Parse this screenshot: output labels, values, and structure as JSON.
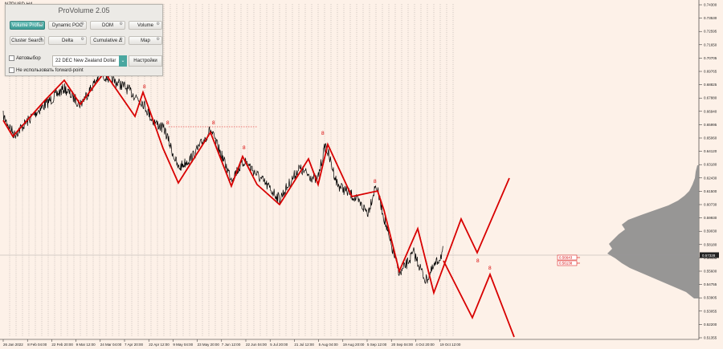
{
  "symbol": "NZDUSD,H4",
  "panel": {
    "title": "ProVolume 2.05",
    "buttons": [
      {
        "label": "Volume Profile",
        "active": true
      },
      {
        "label": "Dynamic POC",
        "active": false
      },
      {
        "label": "DOM",
        "active": false
      },
      {
        "label": "Volume",
        "active": false
      },
      {
        "label": "Cluster Search",
        "active": false
      },
      {
        "label": "Delta",
        "active": false
      },
      {
        "label": "Cumulative Δ",
        "active": false
      },
      {
        "label": "Map",
        "active": false
      }
    ],
    "autoselect_label": "Автовыбор",
    "instrument_value": "22 DEC New Zealand Dollar",
    "settings_label": "Настройки",
    "forward_point_label": "Не использовать forward-point"
  },
  "colors": {
    "background": "#fdf1e8",
    "price": "#000000",
    "projection": "#d80000",
    "profile": "#8c8c8c",
    "accent": "#3d9c95"
  },
  "price_axis": [
    "0.74300",
    "0.73530",
    "0.72595",
    "0.71650",
    "0.70705",
    "0.69765",
    "0.68825",
    "0.67880",
    "0.66940",
    "0.65995",
    "0.65060",
    "0.64120",
    "0.63180",
    "0.62430",
    "0.61500",
    "0.60730",
    "0.59930",
    "0.59030",
    "0.58180",
    "0.56455",
    "0.55600",
    "0.54755",
    "0.53905",
    "0.53055",
    "0.52200",
    "0.51355"
  ],
  "current_price": "0.57328",
  "level_labels": [
    "0.56643",
    "0.56138"
  ],
  "time_axis": [
    "26 Jan 2022",
    "8 Feb 04:00",
    "22 Feb 20:00",
    "9 Mar 12:00",
    "24 Mar 04:00",
    "7 Apr 20:00",
    "22 Apr 12:00",
    "9 May 04:00",
    "23 May 20:00",
    "7 Jun 12:00",
    "22 Jun 04:00",
    "5 Jul 20:00",
    "21 Jul 12:00",
    "5 Aug 04:00",
    "19 Aug 20:00",
    "5 Sep 12:00",
    "20 Sep 04:00",
    "4 Oct 20:00",
    "19 Oct 12:00"
  ],
  "wave_labels": [
    "8",
    "8",
    "8",
    "8",
    "8",
    "8",
    "8",
    "8"
  ]
}
